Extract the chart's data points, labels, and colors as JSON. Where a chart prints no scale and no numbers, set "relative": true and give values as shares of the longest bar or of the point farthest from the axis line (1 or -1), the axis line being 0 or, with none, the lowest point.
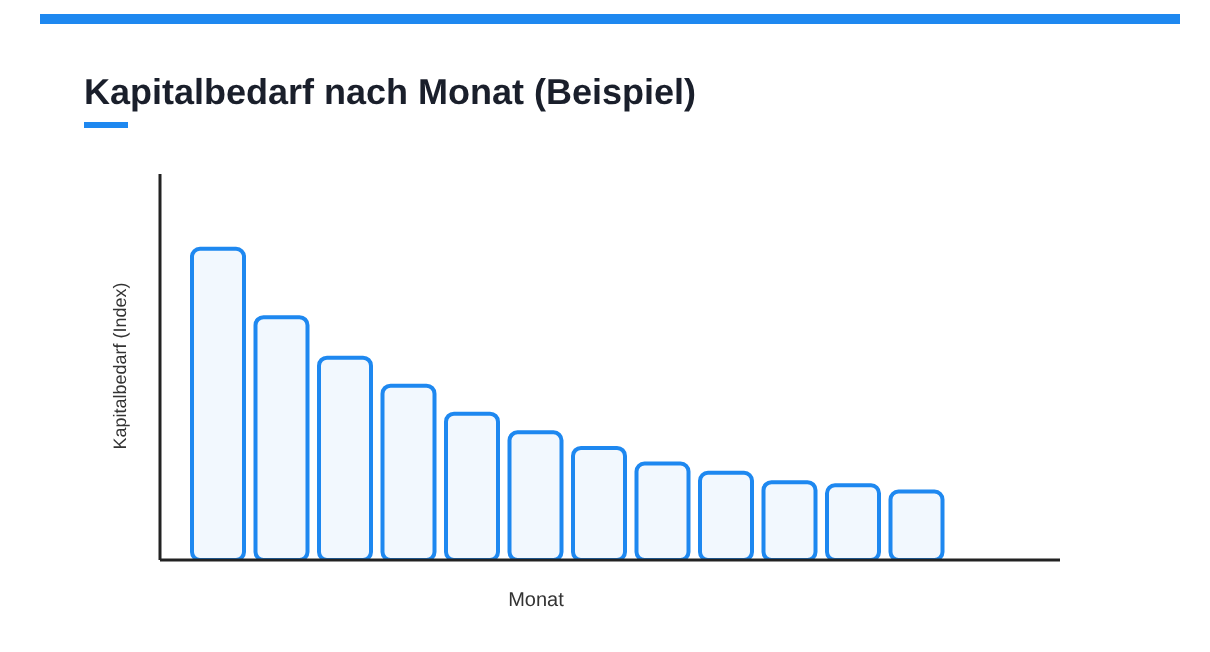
{
  "chart_data": {
    "type": "bar",
    "title": "Kapitalbedarf nach Monat (Beispiel)",
    "xlabel": "Monat",
    "ylabel": "Kapitalbedarf (Index)",
    "relative": true,
    "categories": [
      null,
      null,
      null,
      null,
      null,
      null,
      null,
      null,
      null,
      null,
      null,
      null
    ],
    "values": [
      1,
      0.78,
      0.65,
      0.56,
      0.47,
      0.41,
      0.36,
      0.31,
      0.28,
      0.25,
      0.24,
      0.22
    ],
    "color": "#1e88f0",
    "grid": false,
    "legend": false
  }
}
